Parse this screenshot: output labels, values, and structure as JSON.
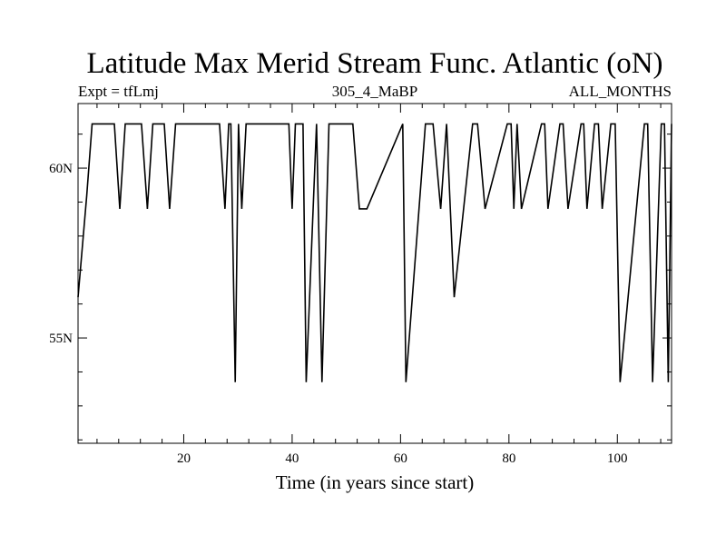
{
  "chart_data": {
    "type": "line",
    "title": "Latitude Max Merid Stream Func. Atlantic (oN)",
    "subtitle_left": "Expt = tfLmj",
    "subtitle_center": "305_4_MaBP",
    "subtitle_right": "ALL_MONTHS",
    "xlabel": "Time (in years since start)",
    "ylabel": "",
    "xlim": [
      0.5,
      110
    ],
    "ylim": [
      51.9,
      61.9
    ],
    "x_ticks": [
      20,
      40,
      60,
      80,
      100
    ],
    "x_tick_labels": [
      "20",
      "40",
      "60",
      "80",
      "100"
    ],
    "y_ticks": [
      55,
      60
    ],
    "y_tick_labels": [
      "55N",
      "60N"
    ],
    "grid": false,
    "series": [
      {
        "x": [
          0.5,
          2.1,
          3.1,
          7.2,
          8.2,
          9.2,
          12.2,
          13.3,
          14.3,
          16.4,
          17.4,
          18.5,
          26.6,
          27.6,
          28.3,
          28.7,
          29.5,
          30.1,
          30.7,
          31.5,
          32.6,
          39.4,
          40.0,
          40.6,
          42.0,
          42.6,
          44.5,
          45.5,
          46.8,
          51.2,
          52.4,
          53.8,
          60.4,
          61.0,
          64.6,
          66.0,
          67.4,
          68.5,
          69.9,
          73.3,
          74.2,
          75.6,
          79.7,
          80.4,
          80.9,
          81.5,
          82.3,
          86.0,
          86.6,
          87.2,
          89.4,
          90.0,
          90.9,
          93.3,
          93.8,
          94.4,
          95.8,
          96.5,
          97.2,
          98.8,
          99.6,
          100.5,
          105.0,
          105.6,
          106.5,
          108.1,
          108.7,
          109.4,
          110.0
        ],
        "y": [
          56.2,
          59.2,
          61.3,
          61.3,
          58.8,
          61.3,
          61.3,
          58.8,
          61.3,
          61.3,
          58.8,
          61.3,
          61.3,
          58.8,
          61.3,
          61.3,
          53.7,
          61.3,
          58.8,
          61.3,
          61.3,
          61.3,
          58.8,
          61.3,
          61.3,
          53.7,
          61.3,
          53.7,
          61.3,
          61.3,
          58.8,
          58.8,
          61.3,
          53.7,
          61.3,
          61.3,
          58.8,
          61.3,
          56.2,
          61.3,
          61.3,
          58.8,
          61.3,
          61.3,
          58.8,
          61.3,
          58.8,
          61.3,
          61.3,
          58.8,
          61.3,
          61.3,
          58.8,
          61.3,
          61.3,
          58.8,
          61.3,
          61.3,
          58.8,
          61.3,
          61.3,
          53.7,
          61.3,
          61.3,
          53.7,
          61.3,
          61.3,
          53.7,
          61.3
        ]
      }
    ]
  }
}
